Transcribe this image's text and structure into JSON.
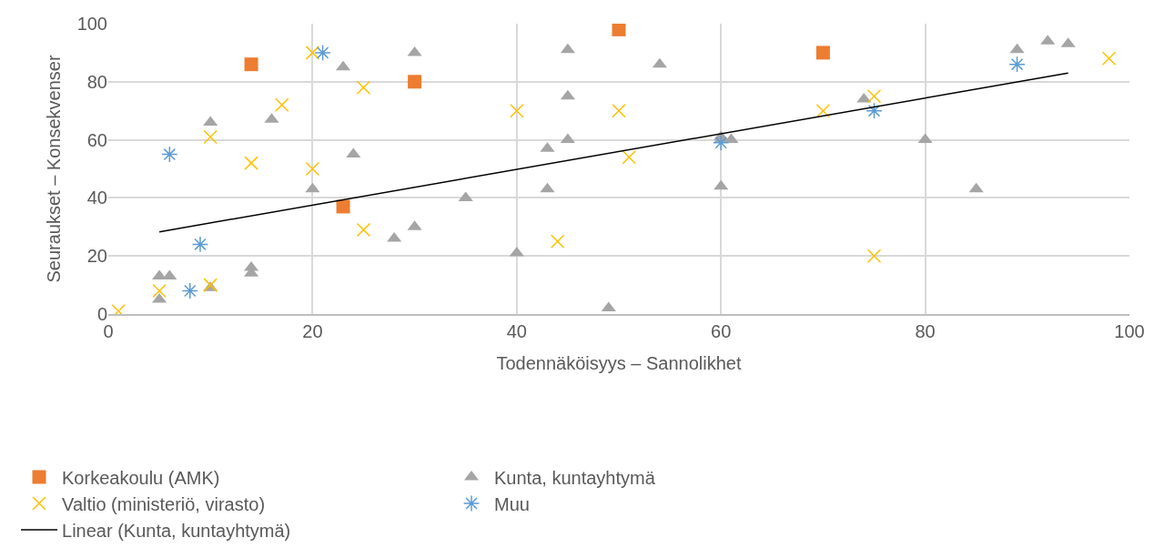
{
  "chart_data": {
    "type": "scatter",
    "xlabel": "Todennäköisyys – Sannolikhet",
    "ylabel": "Seuraukset – Konsekvenser",
    "xlim": [
      0,
      100
    ],
    "xticks": [
      0,
      20,
      40,
      60,
      80,
      100
    ],
    "ylim": [
      0,
      100
    ],
    "yticks": [
      0,
      20,
      40,
      60,
      80,
      100
    ],
    "grid": true,
    "legend": "bottom",
    "series": [
      {
        "name": "Korkeakoulu (AMK)",
        "color": "#ed7d31",
        "marker": "square",
        "x": [
          14,
          30,
          23,
          50,
          70
        ],
        "values": [
          86,
          80,
          37,
          98,
          90
        ]
      },
      {
        "name": "Kunta, kuntayhtymä",
        "color": "#a5a5a5",
        "marker": "triangle",
        "x": [
          5,
          6,
          5,
          10,
          10,
          14,
          14,
          16,
          20,
          23,
          24,
          28,
          30,
          30,
          35,
          40,
          43,
          43,
          45,
          45,
          45,
          49,
          54,
          60,
          60,
          61,
          60,
          74,
          80,
          85,
          89,
          92,
          94
        ],
        "values": [
          13,
          13,
          5,
          66,
          9,
          16,
          14,
          67,
          43,
          85,
          55,
          26,
          90,
          30,
          40,
          21,
          57,
          43,
          91,
          75,
          60,
          2,
          86,
          61,
          60,
          60,
          44,
          74,
          60,
          43,
          91,
          94,
          93
        ]
      },
      {
        "name": "Valtio (ministeriö, virasto)",
        "color": "#ffc000",
        "marker": "cross",
        "x": [
          1,
          5,
          10,
          10,
          14,
          17,
          20,
          20,
          25,
          25,
          40,
          44,
          50,
          51,
          70,
          75,
          75,
          98
        ],
        "values": [
          1,
          8,
          61,
          10,
          52,
          72,
          90,
          50,
          78,
          29,
          70,
          25,
          70,
          54,
          70,
          75,
          20,
          88
        ]
      },
      {
        "name": "Muu",
        "color": "#5b9bd5",
        "marker": "cross",
        "x": [
          6,
          8,
          9,
          21,
          60,
          75,
          89
        ],
        "values": [
          55,
          8,
          24,
          90,
          59,
          70,
          86
        ]
      },
      {
        "name": "Linear (Kunta, kuntayhtymä)",
        "type": "line",
        "color": "#000000",
        "marker": "none",
        "line_style": "solid",
        "x": [
          5,
          94
        ],
        "values": [
          28.3,
          83
        ]
      }
    ]
  }
}
